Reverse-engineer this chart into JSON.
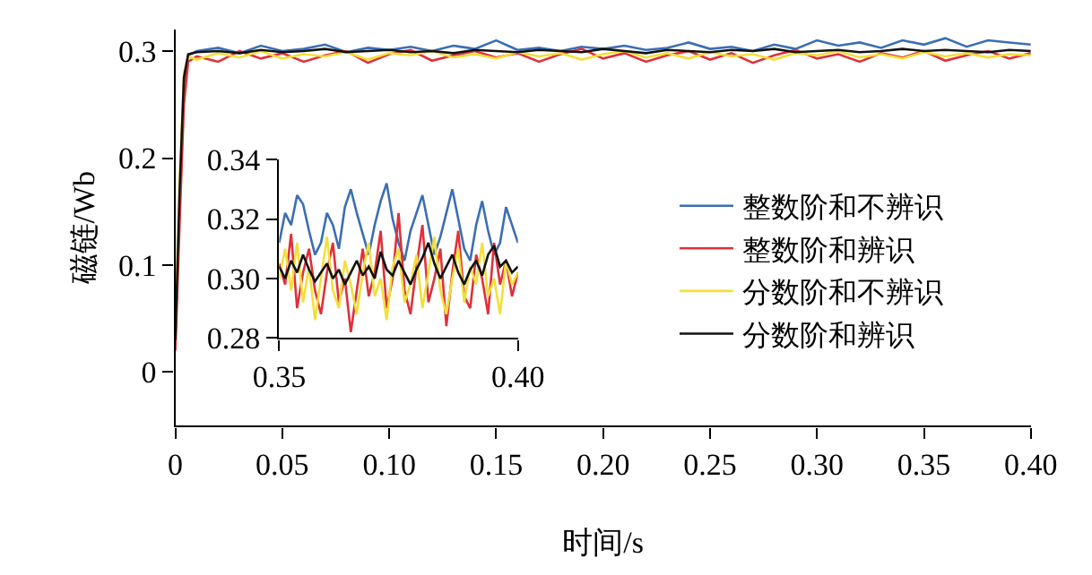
{
  "chart_data": [
    {
      "type": "line",
      "xlabel": "时间/s",
      "ylabel": "磁链/Wb",
      "xlim": [
        0,
        0.4
      ],
      "ylim": [
        -0.05,
        0.32
      ],
      "xticks": [
        0,
        0.05,
        {
          "value": 0.1,
          "label": "0.10"
        },
        0.15,
        {
          "value": 0.2,
          "label": "0.20"
        },
        0.25,
        {
          "value": 0.3,
          "label": "0.30"
        },
        0.35,
        {
          "value": 0.4,
          "label": "0.40"
        }
      ],
      "yticks": [
        0,
        0.1,
        0.2,
        0.3
      ],
      "legend": "right",
      "marker": "none",
      "line_style": "solid",
      "x": [
        0,
        0.002,
        0.004,
        0.006,
        0.01,
        0.02,
        0.03,
        0.04,
        0.05,
        0.06,
        0.07,
        0.08,
        0.09,
        0.1,
        0.11,
        0.12,
        0.13,
        0.14,
        0.15,
        0.16,
        0.17,
        0.18,
        0.19,
        0.2,
        0.21,
        0.22,
        0.23,
        0.24,
        0.25,
        0.26,
        0.27,
        0.28,
        0.29,
        0.3,
        0.31,
        0.32,
        0.33,
        0.34,
        0.35,
        0.36,
        0.37,
        0.38,
        0.39,
        0.4
      ],
      "series": [
        {
          "name": "整数阶和不辨识",
          "color": "#3b6eb4",
          "values": [
            null,
            null,
            0.27,
            0.296,
            0.3,
            0.303,
            0.298,
            0.305,
            0.3,
            0.302,
            0.306,
            0.299,
            0.303,
            0.301,
            0.304,
            0.3,
            0.305,
            0.302,
            0.31,
            0.301,
            0.303,
            0.3,
            0.304,
            0.302,
            0.305,
            0.301,
            0.303,
            0.308,
            0.302,
            0.304,
            0.3,
            0.306,
            0.302,
            0.31,
            0.305,
            0.308,
            0.303,
            0.31,
            0.306,
            0.312,
            0.304,
            0.31,
            0.308,
            0.306
          ]
        },
        {
          "name": "整数阶和辨识",
          "color": "#e0303a",
          "values": [
            0.02,
            0.14,
            0.25,
            0.29,
            0.295,
            0.29,
            0.3,
            0.293,
            0.298,
            0.29,
            0.296,
            0.3,
            0.289,
            0.297,
            0.301,
            0.291,
            0.296,
            0.3,
            0.294,
            0.298,
            0.29,
            0.297,
            0.302,
            0.293,
            0.298,
            0.29,
            0.296,
            0.3,
            0.292,
            0.298,
            0.289,
            0.296,
            0.301,
            0.293,
            0.297,
            0.29,
            0.298,
            0.294,
            0.3,
            0.291,
            0.296,
            0.3,
            0.293,
            0.298
          ]
        },
        {
          "name": "分数阶和不辨识",
          "color": "#f2e03a",
          "values": [
            0.04,
            0.18,
            0.28,
            0.295,
            0.292,
            0.298,
            0.294,
            0.3,
            0.293,
            0.297,
            0.295,
            0.299,
            0.292,
            0.298,
            0.296,
            0.3,
            0.294,
            0.297,
            0.293,
            0.299,
            0.295,
            0.298,
            0.292,
            0.297,
            0.3,
            0.294,
            0.298,
            0.293,
            0.299,
            0.295,
            0.297,
            0.292,
            0.298,
            0.296,
            0.3,
            0.294,
            0.297,
            0.293,
            0.299,
            0.295,
            0.298,
            0.294,
            0.297,
            0.296
          ]
        },
        {
          "name": "分数阶和辨识",
          "color": "#111111",
          "values": [
            0.03,
            0.17,
            0.275,
            0.297,
            0.299,
            0.3,
            0.298,
            0.301,
            0.299,
            0.3,
            0.302,
            0.299,
            0.3,
            0.301,
            0.299,
            0.3,
            0.298,
            0.301,
            0.3,
            0.299,
            0.301,
            0.3,
            0.299,
            0.302,
            0.3,
            0.298,
            0.301,
            0.3,
            0.299,
            0.301,
            0.3,
            0.302,
            0.299,
            0.3,
            0.301,
            0.299,
            0.3,
            0.302,
            0.3,
            0.301,
            0.3,
            0.299,
            0.301,
            0.3
          ]
        }
      ]
    },
    {
      "type": "line",
      "xlim": [
        0.35,
        0.4
      ],
      "ylim": [
        0.28,
        0.34
      ],
      "xticks": [
        0.35,
        {
          "value": 0.4,
          "label": "0.40"
        }
      ],
      "yticks": [
        0.28,
        {
          "value": 0.3,
          "label": "0.30"
        },
        0.32,
        0.34
      ],
      "legend": false,
      "marker": "none",
      "line_style": "solid",
      "x": [
        0.35,
        0.35125,
        0.3525,
        0.35375,
        0.355,
        0.35625,
        0.3575,
        0.35875,
        0.36,
        0.36125,
        0.3625,
        0.36375,
        0.365,
        0.36625,
        0.3675,
        0.36875,
        0.37,
        0.37125,
        0.3725,
        0.37375,
        0.375,
        0.37625,
        0.3775,
        0.37875,
        0.38,
        0.38125,
        0.3825,
        0.38375,
        0.385,
        0.38625,
        0.3875,
        0.38875,
        0.39,
        0.39125,
        0.3925,
        0.39375,
        0.395,
        0.39625,
        0.3975,
        0.39875,
        0.4
      ],
      "series": [
        {
          "color": "#3b6eb4",
          "values": [
            0.312,
            0.322,
            0.318,
            0.328,
            0.325,
            0.316,
            0.308,
            0.312,
            0.322,
            0.318,
            0.31,
            0.324,
            0.33,
            0.322,
            0.315,
            0.308,
            0.318,
            0.326,
            0.332,
            0.32,
            0.312,
            0.306,
            0.316,
            0.322,
            0.328,
            0.318,
            0.308,
            0.314,
            0.322,
            0.33,
            0.32,
            0.31,
            0.306,
            0.318,
            0.326,
            0.316,
            0.308,
            0.312,
            0.324,
            0.318,
            0.312
          ]
        },
        {
          "color": "#e0303a",
          "values": [
            0.305,
            0.298,
            0.315,
            0.29,
            0.302,
            0.31,
            0.296,
            0.288,
            0.302,
            0.312,
            0.292,
            0.3,
            0.282,
            0.296,
            0.31,
            0.294,
            0.302,
            0.316,
            0.29,
            0.3,
            0.322,
            0.296,
            0.288,
            0.304,
            0.318,
            0.292,
            0.3,
            0.31,
            0.284,
            0.302,
            0.316,
            0.294,
            0.29,
            0.308,
            0.3,
            0.288,
            0.312,
            0.298,
            0.306,
            0.294,
            0.302
          ]
        },
        {
          "color": "#f2e03a",
          "values": [
            0.3,
            0.31,
            0.296,
            0.312,
            0.292,
            0.304,
            0.286,
            0.3,
            0.314,
            0.296,
            0.29,
            0.306,
            0.298,
            0.288,
            0.302,
            0.312,
            0.294,
            0.3,
            0.286,
            0.304,
            0.31,
            0.292,
            0.298,
            0.308,
            0.29,
            0.302,
            0.314,
            0.296,
            0.288,
            0.3,
            0.31,
            0.292,
            0.304,
            0.298,
            0.312,
            0.294,
            0.3,
            0.288,
            0.306,
            0.298,
            0.302
          ]
        },
        {
          "color": "#111111",
          "values": [
            0.304,
            0.3,
            0.306,
            0.302,
            0.308,
            0.303,
            0.299,
            0.302,
            0.305,
            0.3,
            0.303,
            0.298,
            0.302,
            0.306,
            0.301,
            0.304,
            0.3,
            0.309,
            0.303,
            0.301,
            0.306,
            0.302,
            0.298,
            0.303,
            0.307,
            0.312,
            0.305,
            0.3,
            0.304,
            0.308,
            0.302,
            0.298,
            0.303,
            0.306,
            0.301,
            0.308,
            0.311,
            0.304,
            0.306,
            0.302,
            0.304
          ]
        }
      ]
    }
  ]
}
